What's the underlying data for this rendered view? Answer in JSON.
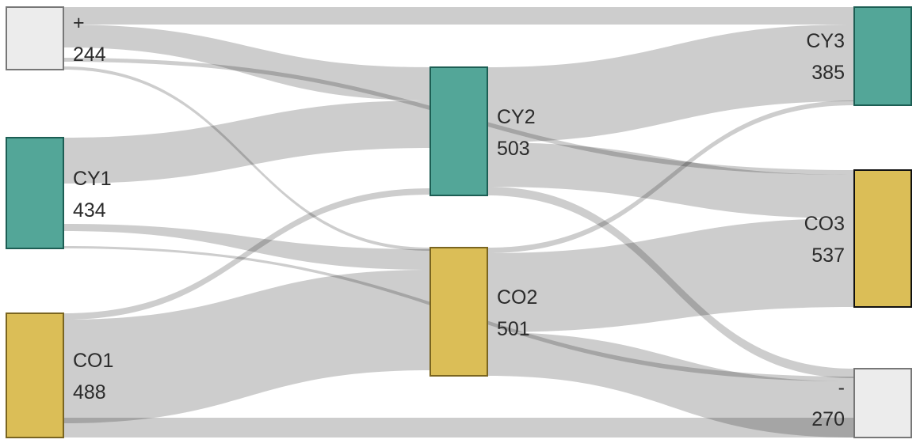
{
  "colors": {
    "cy": "#53a698",
    "co": "#dbbe57",
    "neutral": "#ececec",
    "link": "#c4c4c4"
  },
  "nodes": [
    {
      "id": "plus",
      "name": "+",
      "value": "244"
    },
    {
      "id": "CY1",
      "name": "CY1",
      "value": "434"
    },
    {
      "id": "CO1",
      "name": "CO1",
      "value": "488"
    },
    {
      "id": "CY2",
      "name": "CY2",
      "value": "503"
    },
    {
      "id": "CO2",
      "name": "CO2",
      "value": "501"
    },
    {
      "id": "CY3",
      "name": "CY3",
      "value": "385"
    },
    {
      "id": "CO3",
      "name": "CO3",
      "value": "537"
    },
    {
      "id": "minus",
      "name": "-",
      "value": "270"
    }
  ]
}
